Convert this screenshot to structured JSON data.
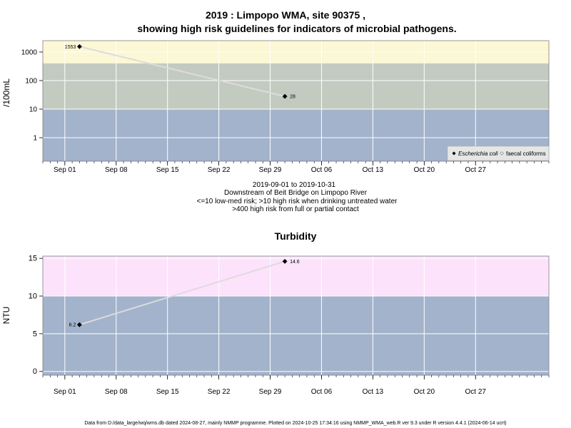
{
  "chart_data": [
    {
      "type": "line",
      "title": "2019 : Limpopo WMA, site 90375 ,",
      "title2": "showing high risk guidelines for indicators of microbial pathogens.",
      "ylabel": "/100mL",
      "yscale": "log",
      "ylim": [
        0.15,
        2500
      ],
      "xlim": [
        "2019-08-29",
        "2019-11-06"
      ],
      "yticks": [
        {
          "value": 1000,
          "label": "1000"
        },
        {
          "value": 100,
          "label": "100"
        },
        {
          "value": 10,
          "label": "10"
        },
        {
          "value": 1,
          "label": "1"
        }
      ],
      "xticks": [
        {
          "date": "2019-09-01",
          "label": "Sep 01"
        },
        {
          "date": "2019-09-08",
          "label": "Sep 08"
        },
        {
          "date": "2019-09-15",
          "label": "Sep 15"
        },
        {
          "date": "2019-09-22",
          "label": "Sep 22"
        },
        {
          "date": "2019-09-29",
          "label": "Sep 29"
        },
        {
          "date": "2019-10-06",
          "label": "Oct 06"
        },
        {
          "date": "2019-10-13",
          "label": "Oct 13"
        },
        {
          "date": "2019-10-20",
          "label": "Oct 20"
        },
        {
          "date": "2019-10-27",
          "label": "Oct 27"
        }
      ],
      "bands": [
        {
          "from": 400,
          "to": 2500,
          "color": "#fcf7d4"
        },
        {
          "from": 10,
          "to": 400,
          "color": "#c3cbc0"
        },
        {
          "from": 0.15,
          "to": 10,
          "color": "#a3b3cb"
        }
      ],
      "series": [
        {
          "name": "Escherichia coli",
          "color": "#000000",
          "line_color": "#dcdcdc",
          "points": [
            {
              "x": "2019-09-03",
              "y": 1553,
              "label": "1553",
              "label_side": "left"
            },
            {
              "x": "2019-10-01",
              "y": 28,
              "label": "28",
              "label_side": "right"
            }
          ]
        },
        {
          "name": "faecal coliforms",
          "color": "#ffffff",
          "points": []
        }
      ],
      "legend_position": "bottom-right",
      "grid": true,
      "caption": [
        "2019-09-01 to 2019-10-31",
        "Downstream of Beit Bridge on Limpopo River",
        "<=10 low-med risk; >10 high risk when drinking untreated water",
        ">400 high risk from full or partial contact"
      ]
    },
    {
      "type": "line",
      "title": "Turbidity",
      "ylabel": "NTU",
      "yscale": "linear",
      "ylim": [
        -0.5,
        15.3
      ],
      "xlim": [
        "2019-08-29",
        "2019-11-06"
      ],
      "yticks": [
        {
          "value": 0,
          "label": "0"
        },
        {
          "value": 5,
          "label": "5"
        },
        {
          "value": 10,
          "label": "10"
        },
        {
          "value": 15,
          "label": "15"
        }
      ],
      "xticks": [
        {
          "date": "2019-09-01",
          "label": "Sep 01"
        },
        {
          "date": "2019-09-08",
          "label": "Sep 08"
        },
        {
          "date": "2019-09-15",
          "label": "Sep 15"
        },
        {
          "date": "2019-09-22",
          "label": "Sep 22"
        },
        {
          "date": "2019-09-29",
          "label": "Sep 29"
        },
        {
          "date": "2019-10-06",
          "label": "Oct 06"
        },
        {
          "date": "2019-10-13",
          "label": "Oct 13"
        },
        {
          "date": "2019-10-20",
          "label": "Oct 20"
        },
        {
          "date": "2019-10-27",
          "label": "Oct 27"
        }
      ],
      "bands": [
        {
          "from": 10,
          "to": 15.3,
          "color": "#fde2fc"
        },
        {
          "from": -0.5,
          "to": 10,
          "color": "#a3b3cb"
        }
      ],
      "series": [
        {
          "color": "#000000",
          "line_color": "#dcdcdc",
          "points": [
            {
              "x": "2019-09-03",
              "y": 6.2,
              "label": "6.2",
              "label_side": "left"
            },
            {
              "x": "2019-10-01",
              "y": 14.6,
              "label": "14.6",
              "label_side": "right"
            }
          ]
        }
      ],
      "grid": true
    }
  ],
  "footer": "Data from D:/data_large/wq/wms.db dated 2024-08-27, mainly NMMP programme. Plotted on 2024-10-25 17:34:16 using NMMP_WMA_web.R ver 9.3 under R version 4.4.1 (2024-06-14 ucrt)"
}
